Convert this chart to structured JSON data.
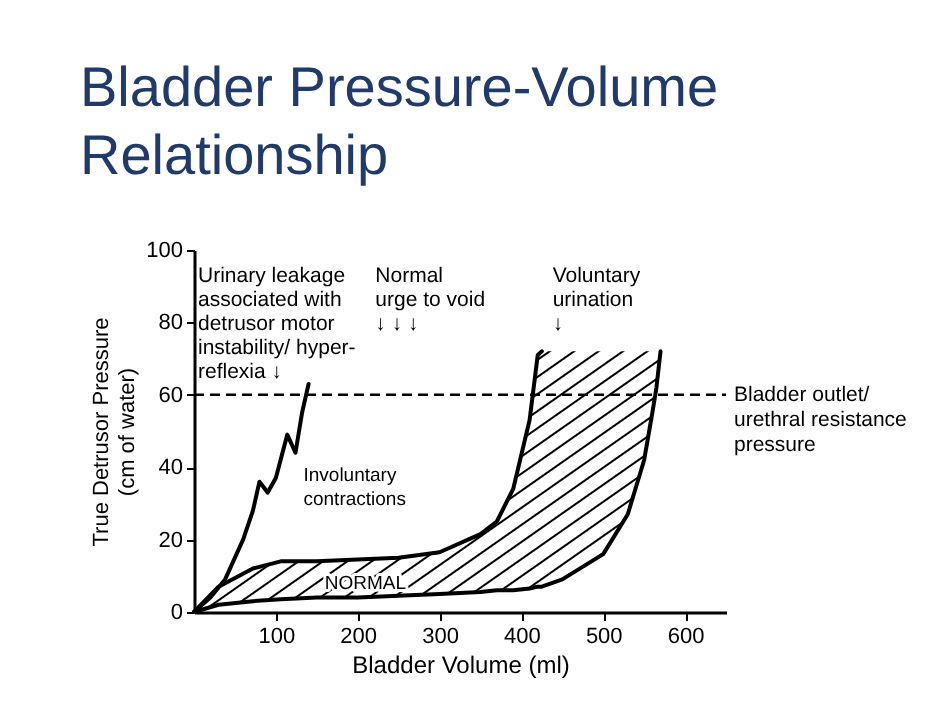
{
  "chart_data": {
    "type": "line",
    "title": "Bladder Pressure-Volume Relationship",
    "xlabel": "Bladder Volume (ml)",
    "ylabel": "True Detrusor Pressure (cm of water)",
    "xlim": [
      0,
      650
    ],
    "xticks": [
      100,
      200,
      300,
      400,
      500,
      600
    ],
    "ylim": [
      0,
      100
    ],
    "yticks": [
      0,
      20,
      40,
      60,
      80,
      100
    ],
    "marker": "none",
    "line_style": "solid",
    "grid": false,
    "series": [
      {
        "color": "#000000",
        "x": [
          0,
          30,
          72,
          106,
          150,
          200,
          250,
          300,
          350,
          370,
          390,
          410,
          420,
          425,
          450,
          500,
          530,
          550,
          560,
          565,
          570
        ],
        "values": [
          0,
          2,
          3,
          3.5,
          4,
          4,
          4.5,
          5,
          5.5,
          6,
          6,
          6.5,
          7,
          7,
          9,
          16,
          27,
          42,
          55,
          62,
          72
        ],
        "lower": [
          0,
          2,
          3,
          3.5,
          4,
          4,
          4.5,
          5,
          5.5,
          6,
          6,
          6.5,
          7,
          7,
          9,
          16,
          27,
          42,
          55,
          62,
          72
        ],
        "upper": [
          0,
          7,
          12,
          14,
          14,
          14.5,
          15,
          16.5,
          21.5,
          25,
          34,
          53,
          71,
          72,
          72,
          72,
          72,
          72,
          72,
          72,
          72
        ]
      },
      {
        "color": "#000000",
        "x": [
          0,
          30,
          72,
          106,
          150,
          200,
          250,
          300,
          350,
          370,
          390,
          410,
          420,
          425
        ],
        "values": [
          0,
          7,
          12,
          14,
          14,
          14.5,
          15,
          16.5,
          21.5,
          25,
          34,
          53,
          71,
          72
        ]
      },
      {
        "color": "#000000",
        "x": [
          0,
          20,
          38,
          60,
          72,
          80,
          90,
          100,
          114,
          124,
          132,
          140
        ],
        "values": [
          0,
          4,
          9,
          20,
          28,
          36,
          33,
          37,
          49,
          44,
          55,
          63
        ]
      }
    ],
    "ref_lines": [
      {
        "axis": "y",
        "value": 60,
        "label": "Bladder outlet/\nurethral resistance\npressure",
        "line_style": "dashed"
      }
    ],
    "annotations": [
      "Urinary leakage\nassociated with\ndetrusor motor\ninstability/ hyper-\nreflexia  ↓",
      "Normal\nurge to void\n ↓    ↓    ↓",
      "Voluntary\nurination\n     ↓",
      {
        "text": "Involuntary\ncontractions",
        "x": 124,
        "y": 44
      },
      {
        "text": "NORMAL",
        "x": 150,
        "y": 14
      }
    ]
  }
}
